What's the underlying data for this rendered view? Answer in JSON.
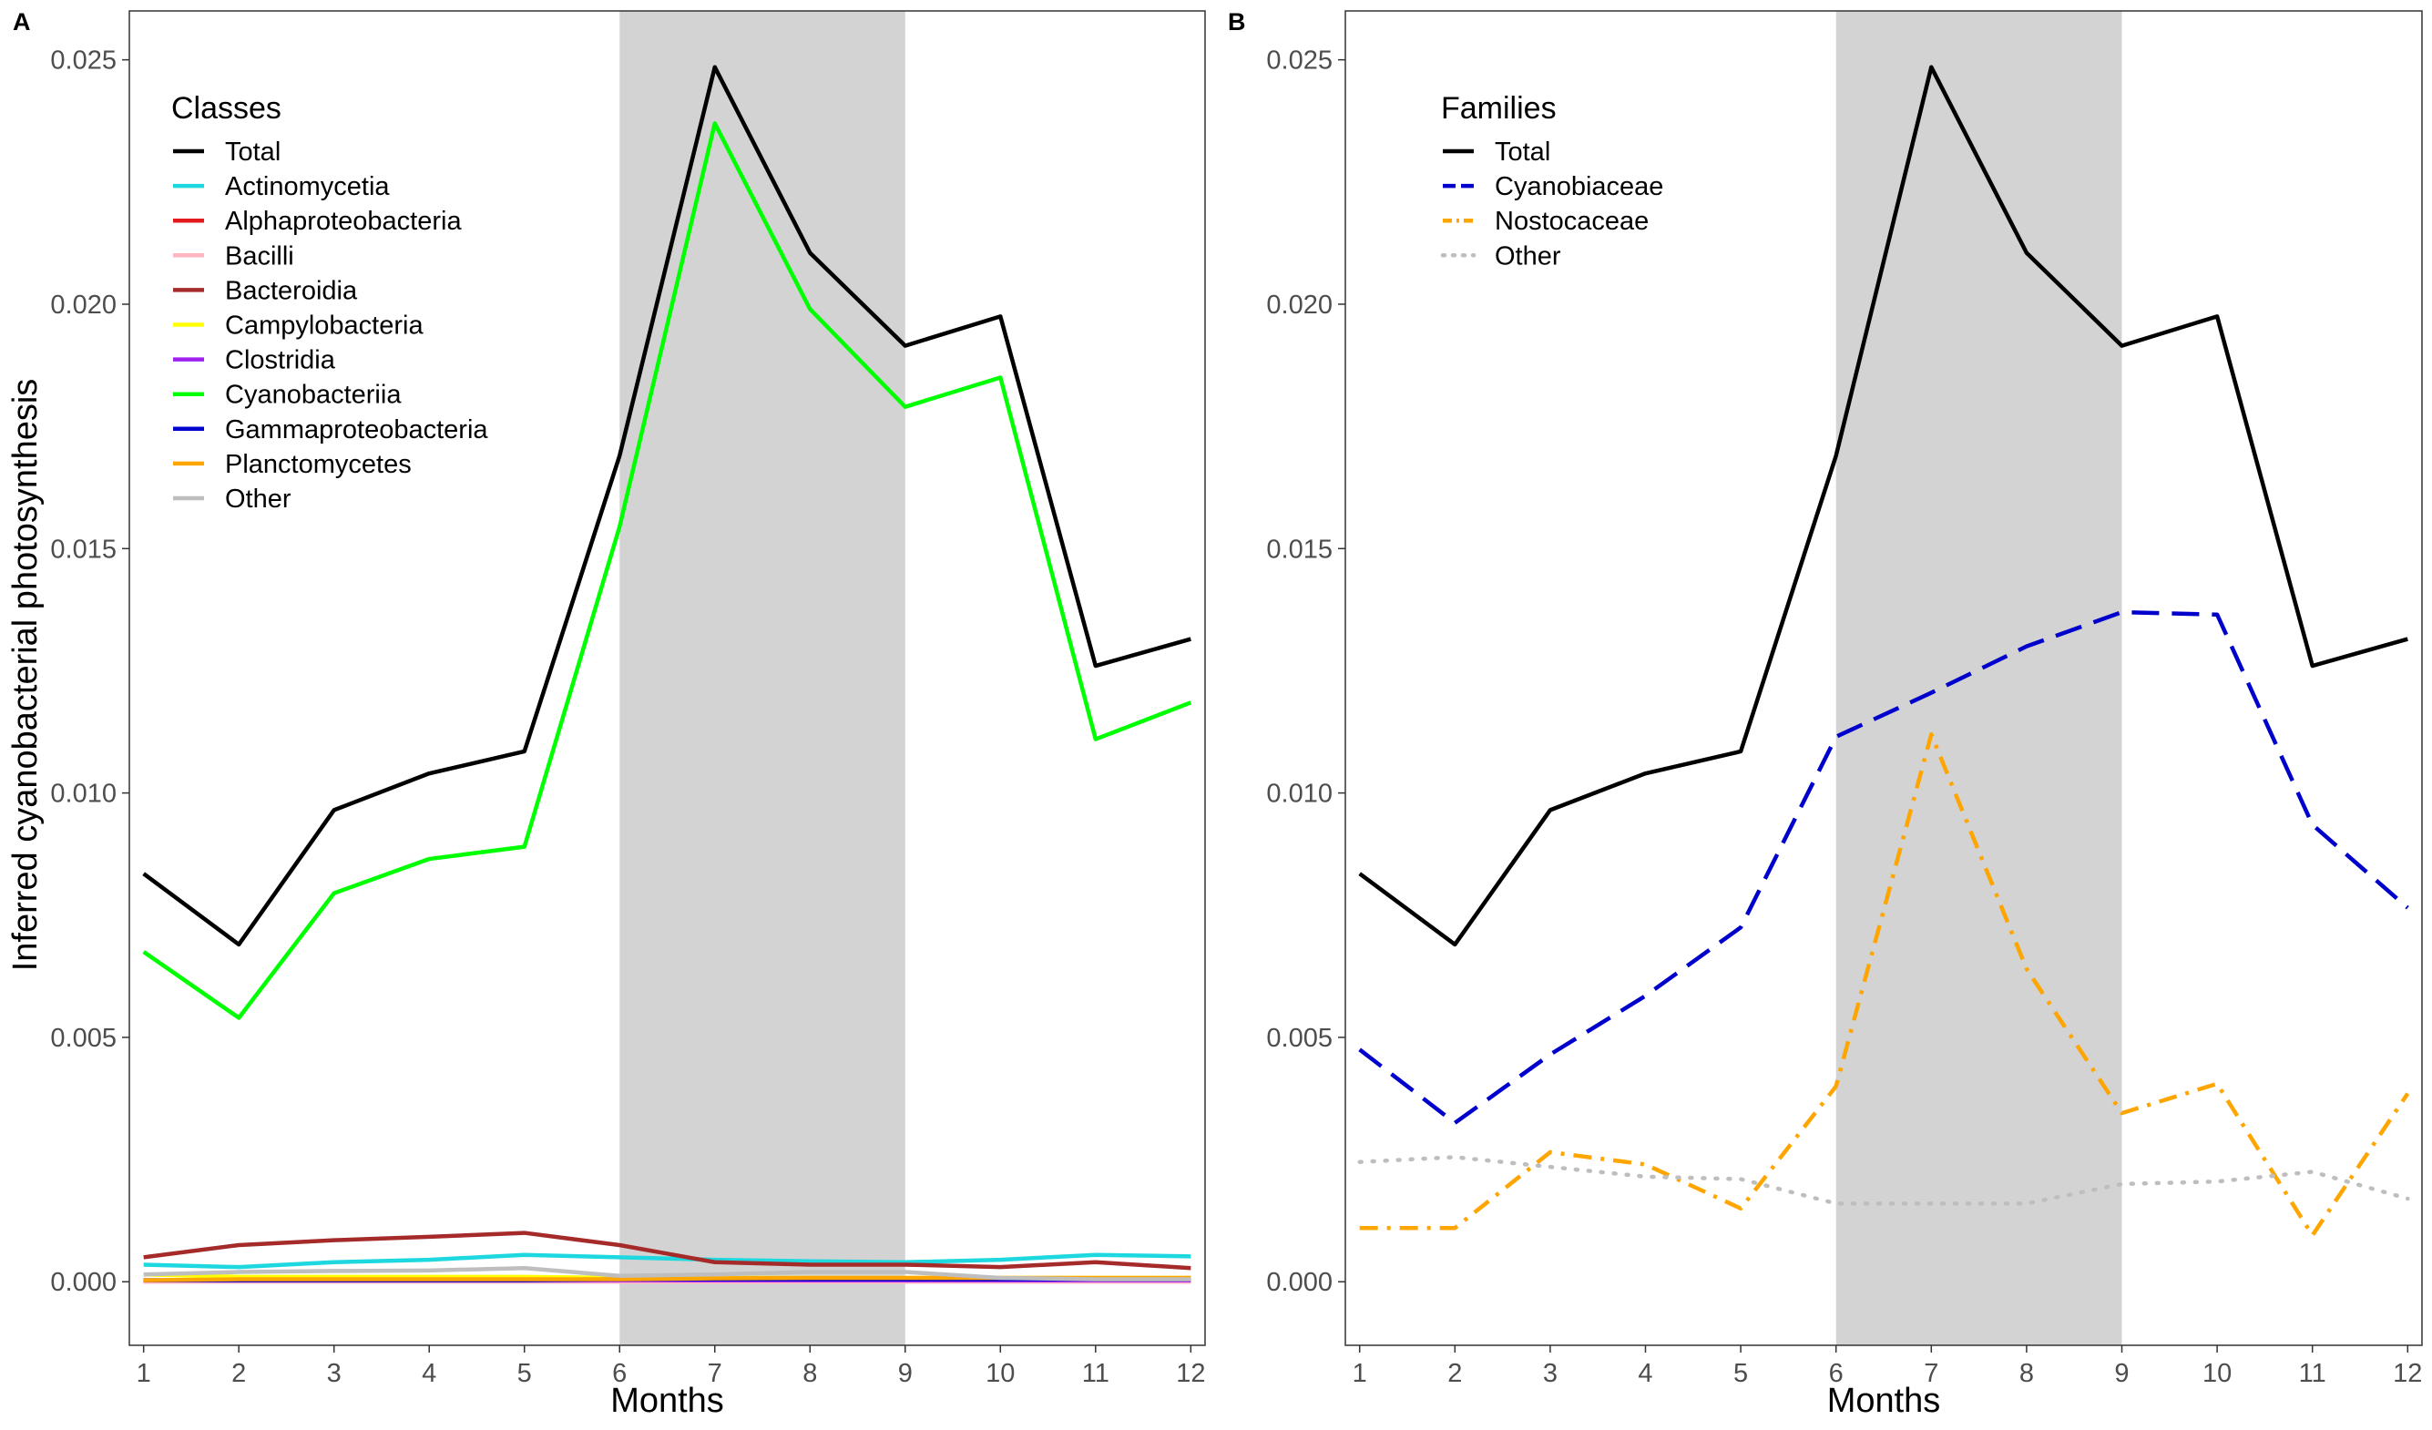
{
  "figure": {
    "shared_ylabel": "Inferred cyanobacterial photosynthesis"
  },
  "chart_data": [
    {
      "type": "line",
      "panel_label": "A",
      "xlabel": "Months",
      "ylabel": "Inferred cyanobacterial photosynthesis",
      "x": [
        1,
        2,
        3,
        4,
        5,
        6,
        7,
        8,
        9,
        10,
        11,
        12
      ],
      "xlim": [
        0.85,
        12.15
      ],
      "ylim": [
        -0.0013,
        0.026
      ],
      "xticks": [
        1,
        2,
        3,
        4,
        5,
        6,
        7,
        8,
        9,
        10,
        11,
        12
      ],
      "yticks": [
        0.0,
        0.005,
        0.01,
        0.015,
        0.02,
        0.025
      ],
      "ytick_labels": [
        "0.000",
        "0.005",
        "0.010",
        "0.015",
        "0.020",
        "0.025"
      ],
      "shaded_region": {
        "x_from": 6,
        "x_to": 9,
        "color": "#d3d3d3"
      },
      "grid": false,
      "legend": {
        "title": "Classes",
        "position": "top-left"
      },
      "series": [
        {
          "name": "Total",
          "color": "#000000",
          "dash": "solid",
          "values": [
            0.00835,
            0.0069,
            0.00965,
            0.0104,
            0.01085,
            0.0169,
            0.02485,
            0.02105,
            0.01915,
            0.01975,
            0.0126,
            0.01315
          ]
        },
        {
          "name": "Actinomycetia",
          "color": "#1ed8e0",
          "dash": "solid",
          "values": [
            0.00035,
            0.0003,
            0.0004,
            0.00045,
            0.00055,
            0.0005,
            0.00045,
            0.00042,
            0.0004,
            0.00045,
            0.00055,
            0.00052
          ]
        },
        {
          "name": "Alphaproteobacteria",
          "color": "#e3191c",
          "dash": "solid",
          "values": [
            2e-05,
            2e-05,
            2e-05,
            2e-05,
            2e-05,
            2e-05,
            2e-05,
            2e-05,
            2e-05,
            2e-05,
            2e-05,
            2e-05
          ]
        },
        {
          "name": "Bacilli",
          "color": "#ffb6c1",
          "dash": "solid",
          "values": [
            0.0,
            0.0,
            0.0,
            0.0,
            0.0,
            0.0,
            0.0,
            0.0,
            0.0,
            0.0,
            0.0,
            0.0
          ]
        },
        {
          "name": "Bacteroidia",
          "color": "#a52a2a",
          "dash": "solid",
          "values": [
            0.0005,
            0.00075,
            0.00085,
            0.00092,
            0.001,
            0.00075,
            0.0004,
            0.00035,
            0.00035,
            0.0003,
            0.0004,
            0.00028
          ]
        },
        {
          "name": "Campylobacteria",
          "color": "#ffff00",
          "dash": "solid",
          "values": [
            0.00015,
            0.0001,
            0.0001,
            0.0001,
            0.0001,
            8e-05,
            8e-05,
            8e-05,
            8e-05,
            8e-05,
            8e-05,
            8e-05
          ]
        },
        {
          "name": "Clostridia",
          "color": "#a020f0",
          "dash": "solid",
          "values": [
            3e-05,
            3e-05,
            3e-05,
            3e-05,
            3e-05,
            3e-05,
            3e-05,
            3e-05,
            3e-05,
            3e-05,
            3e-05,
            3e-05
          ]
        },
        {
          "name": "Cyanobacteriia",
          "color": "#00ff00",
          "dash": "solid",
          "values": [
            0.00675,
            0.0054,
            0.00795,
            0.00865,
            0.0089,
            0.01545,
            0.0237,
            0.0199,
            0.0179,
            0.0185,
            0.0111,
            0.01185
          ]
        },
        {
          "name": "Gammaproteobacteria",
          "color": "#0000cd",
          "dash": "solid",
          "values": [
            3e-05,
            3e-05,
            3e-05,
            3e-05,
            3e-05,
            5e-05,
            5e-05,
            5e-05,
            5e-05,
            5e-05,
            5e-05,
            5e-05
          ]
        },
        {
          "name": "Planctomycetes",
          "color": "#ffa500",
          "dash": "solid",
          "values": [
            3e-05,
            5e-05,
            5e-05,
            5e-05,
            5e-05,
            5e-05,
            7e-05,
            8e-05,
            8e-05,
            8e-05,
            8e-05,
            8e-05
          ]
        },
        {
          "name": "Other",
          "color": "#bebebe",
          "dash": "solid",
          "values": [
            0.00015,
            0.0002,
            0.00022,
            0.00023,
            0.00028,
            0.00012,
            0.00015,
            0.0002,
            0.0002,
            8e-05,
            5e-05,
            5e-05
          ]
        }
      ]
    },
    {
      "type": "line",
      "panel_label": "B",
      "xlabel": "Months",
      "ylabel": "",
      "x": [
        1,
        2,
        3,
        4,
        5,
        6,
        7,
        8,
        9,
        10,
        11,
        12
      ],
      "xlim": [
        0.85,
        12.15
      ],
      "ylim": [
        -0.0013,
        0.026
      ],
      "xticks": [
        1,
        2,
        3,
        4,
        5,
        6,
        7,
        8,
        9,
        10,
        11,
        12
      ],
      "yticks": [
        0.0,
        0.005,
        0.01,
        0.015,
        0.02,
        0.025
      ],
      "ytick_labels": [
        "0.000",
        "0.005",
        "0.010",
        "0.015",
        "0.020",
        "0.025"
      ],
      "shaded_region": {
        "x_from": 6,
        "x_to": 9,
        "color": "#d3d3d3"
      },
      "grid": false,
      "legend": {
        "title": "Families",
        "position": "top-left"
      },
      "series": [
        {
          "name": "Total",
          "color": "#000000",
          "dash": "solid",
          "values": [
            0.00835,
            0.0069,
            0.00965,
            0.0104,
            0.01085,
            0.0169,
            0.02485,
            0.02105,
            0.01915,
            0.01975,
            0.0126,
            0.01315
          ]
        },
        {
          "name": "Cyanobiaceae",
          "color": "#0000cd",
          "dash": "dashed",
          "values": [
            0.00475,
            0.00325,
            0.00465,
            0.00585,
            0.00725,
            0.01115,
            0.01205,
            0.013,
            0.0137,
            0.01365,
            0.00935,
            0.00765
          ]
        },
        {
          "name": "Nostocaceae",
          "color": "#ffa500",
          "dash": "dotdash",
          "values": [
            0.0011,
            0.0011,
            0.00265,
            0.0024,
            0.0015,
            0.004,
            0.0112,
            0.0064,
            0.00345,
            0.00405,
            0.00095,
            0.00385
          ]
        },
        {
          "name": "Other",
          "color": "#bebebe",
          "dash": "dotted",
          "values": [
            0.00245,
            0.00255,
            0.00235,
            0.00215,
            0.0021,
            0.0016,
            0.0016,
            0.0016,
            0.002,
            0.00205,
            0.00225,
            0.0017
          ]
        }
      ]
    }
  ]
}
